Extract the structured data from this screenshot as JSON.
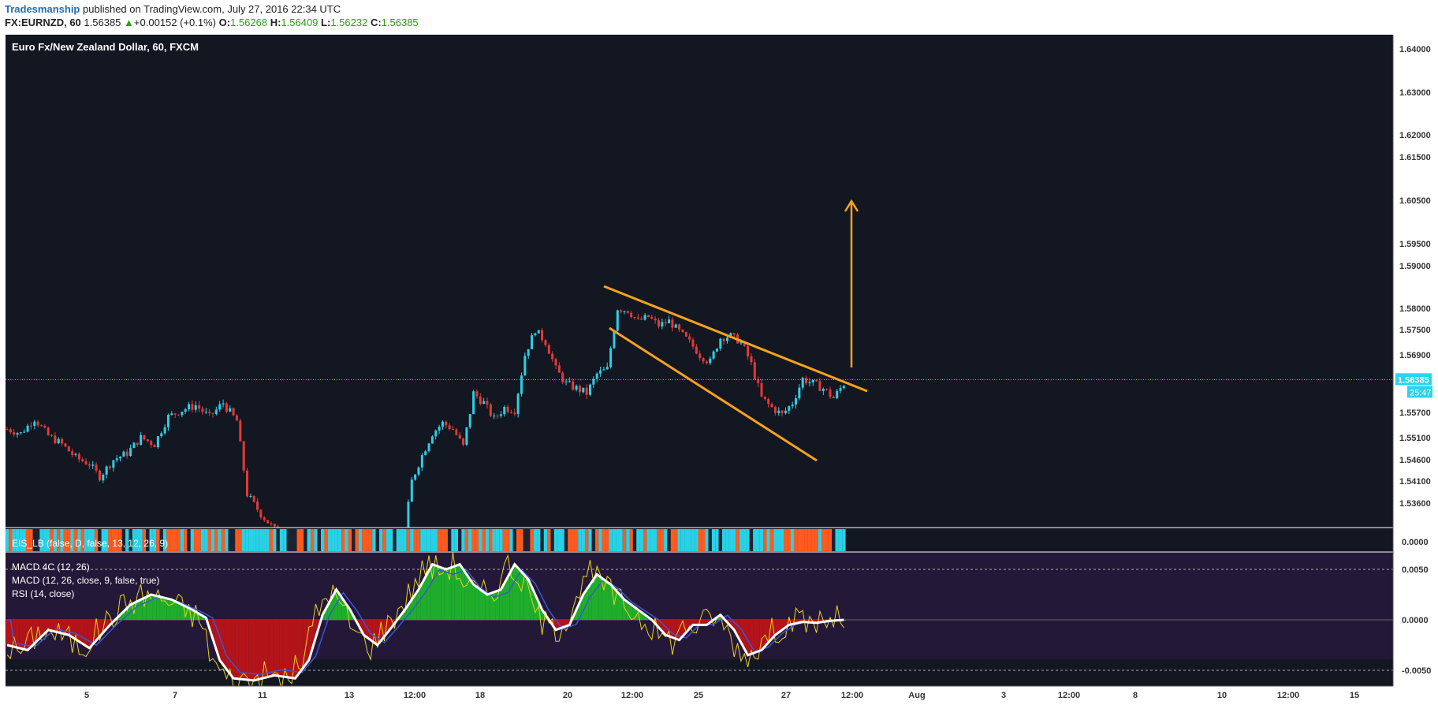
{
  "header": {
    "author": "Tradesmanship",
    "published": "published on TradingView.com, July 27, 2016 22:34 UTC",
    "symbol": "FX:EURNZD, 60",
    "last": "1.56385",
    "change": "+0.00152 (+0.1%)",
    "o_label": "O:",
    "o": "1.56268",
    "h_label": "H:",
    "h": "1.56409",
    "l_label": "L:",
    "l": "1.56232",
    "c_label": "C:",
    "c": "1.56385"
  },
  "colors": {
    "background": "#131722",
    "up": "#29d1e6",
    "down": "#e53935",
    "annotation": "#f7a21b",
    "osc_bg": "#241838",
    "axis_text": "#333333",
    "current_price_tag": "#2ad4ec"
  },
  "chart_data": {
    "type": "candlestick",
    "title": "Euro Fx/New Zealand Dollar, 60, FXCM",
    "price_axis": [
      "1.64000",
      "1.63000",
      "1.62000",
      "1.61500",
      "1.60500",
      "1.59500",
      "1.59000",
      "1.58000",
      "1.57500",
      "1.56900",
      "1.55700",
      "1.55100",
      "1.54600",
      "1.54100",
      "1.53600"
    ],
    "current_price": "1.56385",
    "countdown": "25:47",
    "time_axis": [
      "5",
      "7",
      "11",
      "13",
      "12:00",
      "18",
      "20",
      "12:00",
      "25",
      "27",
      "12:00",
      "Aug",
      "3",
      "12:00",
      "8",
      "10",
      "12:00",
      "15"
    ],
    "price_path": [
      [
        0,
        1.553
      ],
      [
        4,
        1.552
      ],
      [
        8,
        1.5555
      ],
      [
        12,
        1.5515
      ],
      [
        16,
        1.5495
      ],
      [
        20,
        1.5465
      ],
      [
        24,
        1.545
      ],
      [
        27,
        1.542
      ],
      [
        31,
        1.546
      ],
      [
        35,
        1.5475
      ],
      [
        39,
        1.551
      ],
      [
        43,
        1.5495
      ],
      [
        47,
        1.556
      ],
      [
        51,
        1.5575
      ],
      [
        55,
        1.5585
      ],
      [
        59,
        1.556
      ],
      [
        63,
        1.559
      ],
      [
        67,
        1.555
      ],
      [
        70,
        1.538
      ],
      [
        74,
        1.5335
      ],
      [
        78,
        1.53
      ],
      [
        82,
        1.528
      ],
      [
        86,
        1.527
      ],
      [
        90,
        1.528
      ],
      [
        94,
        1.5275
      ],
      [
        98,
        1.5285
      ],
      [
        102,
        1.529
      ],
      [
        106,
        1.528
      ],
      [
        110,
        1.527
      ],
      [
        113,
        1.528
      ],
      [
        116,
        1.53
      ],
      [
        118,
        1.541
      ],
      [
        121,
        1.547
      ],
      [
        124,
        1.552
      ],
      [
        127,
        1.5545
      ],
      [
        130,
        1.553
      ],
      [
        133,
        1.549
      ],
      [
        136,
        1.561
      ],
      [
        139,
        1.559
      ],
      [
        142,
        1.5555
      ],
      [
        145,
        1.558
      ],
      [
        148,
        1.5575
      ],
      [
        151,
        1.569
      ],
      [
        154,
        1.575
      ],
      [
        157,
        1.572
      ],
      [
        160,
        1.566
      ],
      [
        163,
        1.563
      ],
      [
        166,
        1.562
      ],
      [
        169,
        1.561
      ],
      [
        172,
        1.565
      ],
      [
        175,
        1.566
      ],
      [
        178,
        1.58
      ],
      [
        181,
        1.5795
      ],
      [
        184,
        1.577
      ],
      [
        187,
        1.578
      ],
      [
        190,
        1.576
      ],
      [
        193,
        1.577
      ],
      [
        196,
        1.5745
      ],
      [
        199,
        1.572
      ],
      [
        202,
        1.569
      ],
      [
        205,
        1.5675
      ],
      [
        208,
        1.573
      ],
      [
        211,
        1.5735
      ],
      [
        214,
        1.572
      ],
      [
        217,
        1.567
      ],
      [
        220,
        1.56
      ],
      [
        223,
        1.558
      ],
      [
        226,
        1.5565
      ],
      [
        229,
        1.559
      ],
      [
        232,
        1.564
      ],
      [
        235,
        1.563
      ],
      [
        238,
        1.562
      ],
      [
        241,
        1.56
      ],
      [
        244,
        1.563
      ]
    ],
    "series": [
      {
        "name": "EIS_LB (false, D, false, 13, 12, 26, 9)",
        "values": []
      },
      {
        "name": "MACD 4C (12, 26)",
        "values": []
      },
      {
        "name": "MACD (12, 26, close, 9, false, true)",
        "values": []
      },
      {
        "name": "RSI (14, close)",
        "values": []
      }
    ],
    "osc_axis": [
      "0.0050",
      "0.0000",
      "-0.0050"
    ],
    "eis_axis": "0.0000",
    "macd_path": [
      [
        0,
        -0.0025
      ],
      [
        6,
        -0.003
      ],
      [
        12,
        -0.001
      ],
      [
        18,
        -0.0015
      ],
      [
        24,
        -0.0028
      ],
      [
        30,
        -0.0005
      ],
      [
        36,
        0.0015
      ],
      [
        42,
        0.0025
      ],
      [
        48,
        0.002
      ],
      [
        54,
        0.001
      ],
      [
        58,
        0.0002
      ],
      [
        62,
        -0.004
      ],
      [
        66,
        -0.0058
      ],
      [
        72,
        -0.006
      ],
      [
        78,
        -0.0055
      ],
      [
        84,
        -0.0058
      ],
      [
        88,
        -0.004
      ],
      [
        92,
        0.0005
      ],
      [
        96,
        0.003
      ],
      [
        100,
        0.001
      ],
      [
        104,
        -0.0015
      ],
      [
        108,
        -0.0025
      ],
      [
        112,
        -0.0008
      ],
      [
        116,
        0.001
      ],
      [
        120,
        0.003
      ],
      [
        124,
        0.0055
      ],
      [
        128,
        0.005
      ],
      [
        132,
        0.0055
      ],
      [
        136,
        0.0035
      ],
      [
        140,
        0.0025
      ],
      [
        144,
        0.003
      ],
      [
        148,
        0.0055
      ],
      [
        152,
        0.004
      ],
      [
        156,
        0.001
      ],
      [
        160,
        -0.001
      ],
      [
        164,
        -0.0005
      ],
      [
        168,
        0.0025
      ],
      [
        172,
        0.0045
      ],
      [
        176,
        0.0035
      ],
      [
        180,
        0.002
      ],
      [
        184,
        0.001
      ],
      [
        188,
        0.0
      ],
      [
        192,
        -0.0015
      ],
      [
        196,
        -0.002
      ],
      [
        200,
        -0.0005
      ],
      [
        204,
        -0.0005
      ],
      [
        208,
        0.0005
      ],
      [
        212,
        -0.001
      ],
      [
        216,
        -0.0035
      ],
      [
        220,
        -0.003
      ],
      [
        224,
        -0.0015
      ],
      [
        228,
        -0.0005
      ],
      [
        232,
        -0.0002
      ],
      [
        236,
        -0.0003
      ],
      [
        240,
        -0.0001
      ],
      [
        244,
        0.0
      ]
    ]
  }
}
